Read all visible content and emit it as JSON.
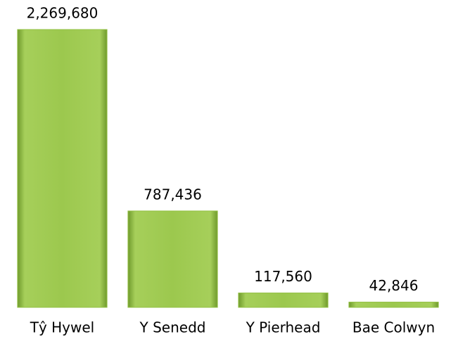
{
  "chart_data": {
    "type": "bar",
    "categories": [
      "Tŷ Hywel",
      "Y Senedd",
      "Y Pierhead",
      "Bae Colwyn"
    ],
    "values": [
      2269680,
      787436,
      117560,
      42846
    ],
    "value_labels": [
      "2,269,680",
      "787,436",
      "117,560",
      "42,846"
    ],
    "color": "#92c043"
  }
}
